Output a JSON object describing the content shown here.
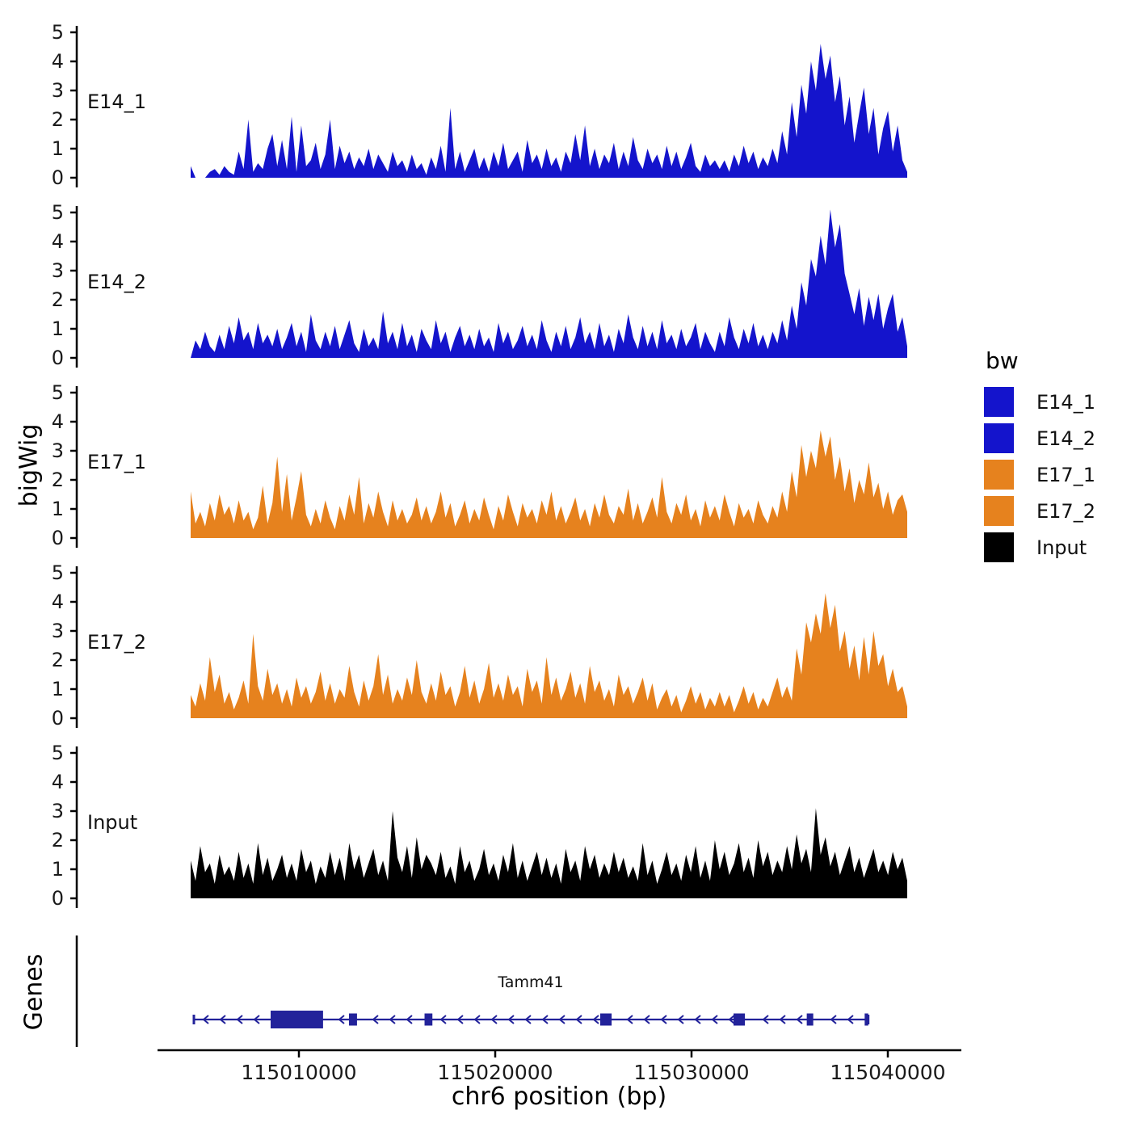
{
  "axes": {
    "y_title": "bigWig",
    "x_title": "chr6 position (bp)",
    "y_ticks": [
      "0",
      "1",
      "2",
      "3",
      "4",
      "5"
    ],
    "x_ticks": [
      {
        "label": "115010000",
        "bp": 115010000
      },
      {
        "label": "115020000",
        "bp": 115020000
      },
      {
        "label": "115030000",
        "bp": 115030000
      },
      {
        "label": "115040000",
        "bp": 115040000
      }
    ]
  },
  "legend": {
    "title": "bw",
    "entries": [
      {
        "label": "E14_1",
        "color": "#1414CC"
      },
      {
        "label": "E14_2",
        "color": "#1414CC"
      },
      {
        "label": "E17_1",
        "color": "#E6821E"
      },
      {
        "label": "E17_2",
        "color": "#E6821E"
      },
      {
        "label": "Input",
        "color": "#000000"
      }
    ]
  },
  "genes_panel": {
    "axis_title": "Genes"
  },
  "chart_data": {
    "type": "area",
    "chromosome": "chr6",
    "x_start": 115004500,
    "x_end": 115041000,
    "ylim": [
      0,
      5
    ],
    "tracks": [
      {
        "name": "E14_1",
        "color": "#1414CC",
        "values": [
          0.4,
          0,
          0,
          0,
          0.2,
          0.3,
          0.1,
          0.4,
          0.2,
          0.1,
          0.9,
          0.3,
          2,
          0.2,
          0.5,
          0.3,
          1,
          1.5,
          0.4,
          1.3,
          0.3,
          2.1,
          0.2,
          1.8,
          0.4,
          0.6,
          1.2,
          0.3,
          0.8,
          2,
          0.3,
          1.1,
          0.5,
          0.9,
          0.3,
          0.7,
          0.4,
          1,
          0.3,
          0.8,
          0.5,
          0.2,
          0.9,
          0.4,
          0.6,
          0.2,
          0.8,
          0.3,
          0.5,
          0.1,
          0.7,
          0.3,
          1.1,
          0.2,
          2.4,
          0.3,
          0.9,
          0.2,
          0.6,
          1,
          0.3,
          0.7,
          0.2,
          0.9,
          0.4,
          1.2,
          0.3,
          0.6,
          0.9,
          0.2,
          1.3,
          0.5,
          0.8,
          0.3,
          1,
          0.4,
          0.7,
          0.2,
          0.9,
          0.5,
          1.5,
          0.6,
          1.8,
          0.4,
          1,
          0.3,
          0.8,
          0.5,
          1.2,
          0.3,
          0.9,
          0.4,
          1.4,
          0.6,
          0.3,
          1,
          0.5,
          0.8,
          0.3,
          1.1,
          0.4,
          0.9,
          0.3,
          0.7,
          1.2,
          0.4,
          0.2,
          0.8,
          0.4,
          0.6,
          0.3,
          0.6,
          0.2,
          0.8,
          0.4,
          1.1,
          0.5,
          0.9,
          0.3,
          0.7,
          0.4,
          1,
          0.5,
          1.6,
          0.8,
          2.6,
          1.4,
          3.2,
          2.2,
          4,
          3,
          4.6,
          3.4,
          4.2,
          2.6,
          3.5,
          1.8,
          2.8,
          1.2,
          2.2,
          3.1,
          1.5,
          2.4,
          0.8,
          1.7,
          2.3,
          0.9,
          1.8,
          0.6,
          0.2
        ]
      },
      {
        "name": "E14_2",
        "color": "#1414CC",
        "values": [
          0,
          0.6,
          0.3,
          0.9,
          0.4,
          0.2,
          0.8,
          0.3,
          1.1,
          0.5,
          1.4,
          0.6,
          0.9,
          0.3,
          1.2,
          0.5,
          0.8,
          0.4,
          1,
          0.3,
          0.7,
          1.2,
          0.4,
          0.9,
          0.2,
          1.5,
          0.6,
          0.3,
          0.9,
          0.4,
          1.1,
          0.3,
          0.8,
          1.3,
          0.5,
          0.2,
          1,
          0.4,
          0.7,
          0.3,
          1.6,
          0.5,
          0.9,
          0.3,
          1.2,
          0.4,
          0.8,
          0.2,
          1,
          0.6,
          0.3,
          1.3,
          0.5,
          0.9,
          0.2,
          0.7,
          1.1,
          0.4,
          0.8,
          0.3,
          1,
          0.4,
          0.7,
          0.2,
          1.2,
          0.5,
          0.9,
          0.3,
          0.6,
          1.1,
          0.4,
          0.8,
          0.3,
          1.3,
          0.6,
          0.2,
          0.9,
          0.4,
          1.1,
          0.3,
          0.7,
          1.4,
          0.5,
          0.9,
          0.3,
          1.2,
          0.4,
          0.8,
          0.2,
          1,
          0.5,
          1.5,
          0.7,
          0.3,
          1.1,
          0.4,
          0.9,
          0.3,
          1.3,
          0.5,
          0.8,
          0.3,
          1,
          0.4,
          0.7,
          1.2,
          0.3,
          0.9,
          0.5,
          0.2,
          0.9,
          0.4,
          1.4,
          0.7,
          0.3,
          1,
          0.5,
          1.2,
          0.4,
          0.8,
          0.3,
          0.9,
          0.5,
          1.3,
          0.6,
          1.8,
          1,
          2.6,
          1.8,
          3.4,
          2.8,
          4.2,
          3.2,
          5.1,
          3.8,
          4.6,
          2.9,
          2.2,
          1.5,
          2.4,
          1.1,
          2.1,
          1.3,
          2.2,
          1,
          1.7,
          2.2,
          0.9,
          1.4,
          0.4
        ]
      },
      {
        "name": "E17_1",
        "color": "#E6821E",
        "values": [
          1.6,
          0.5,
          0.9,
          0.4,
          1.2,
          0.6,
          1.5,
          0.8,
          1.1,
          0.5,
          1.3,
          0.6,
          0.9,
          0.3,
          0.7,
          1.8,
          0.5,
          1.2,
          2.8,
          0.9,
          2.2,
          0.6,
          1.4,
          2.3,
          0.8,
          0.4,
          1,
          0.5,
          1.3,
          0.7,
          0.3,
          1.1,
          0.6,
          1.5,
          0.8,
          2.1,
          0.5,
          1.2,
          0.7,
          1.6,
          0.9,
          0.4,
          1.3,
          0.6,
          1,
          0.5,
          0.8,
          1.4,
          0.6,
          1.1,
          0.5,
          0.9,
          1.6,
          0.7,
          1.2,
          0.4,
          0.8,
          1.3,
          0.5,
          1,
          0.6,
          1.4,
          0.8,
          0.3,
          1.1,
          0.6,
          1.5,
          0.9,
          0.4,
          1.2,
          0.7,
          1,
          0.5,
          1.3,
          0.8,
          1.6,
          0.6,
          1.1,
          0.5,
          0.9,
          1.4,
          0.6,
          1,
          0.4,
          1.2,
          0.7,
          1.5,
          0.8,
          0.5,
          1.1,
          0.8,
          1.7,
          0.6,
          1.2,
          0.5,
          0.9,
          1.4,
          0.7,
          2.1,
          0.9,
          0.5,
          1.2,
          0.8,
          1.5,
          0.6,
          1,
          0.4,
          1.3,
          0.7,
          1.1,
          0.6,
          1.5,
          0.9,
          0.4,
          1.2,
          0.7,
          1,
          0.5,
          1.3,
          0.8,
          0.5,
          1.1,
          0.7,
          1.6,
          0.9,
          2.3,
          1.4,
          3.2,
          2.1,
          3,
          2.4,
          3.7,
          2.8,
          3.5,
          2,
          2.8,
          1.6,
          2.4,
          1.2,
          2,
          1.5,
          2.6,
          1.4,
          1.9,
          1,
          1.6,
          0.8,
          1.3,
          1.5,
          0.9
        ]
      },
      {
        "name": "E17_2",
        "color": "#E6821E",
        "values": [
          0.8,
          0.4,
          1.2,
          0.6,
          2.1,
          0.9,
          1.5,
          0.5,
          0.9,
          0.3,
          0.7,
          1.3,
          0.5,
          2.9,
          1.1,
          0.6,
          1.7,
          0.8,
          1.2,
          0.5,
          1,
          0.4,
          1.4,
          0.7,
          1.1,
          0.5,
          0.9,
          1.6,
          0.6,
          1.2,
          0.5,
          1,
          0.7,
          1.8,
          0.9,
          0.4,
          1.3,
          0.6,
          1.1,
          2.2,
          0.8,
          1.5,
          0.5,
          1,
          0.6,
          1.4,
          0.8,
          2,
          0.9,
          0.5,
          1.2,
          0.6,
          1.6,
          0.8,
          1.1,
          0.4,
          0.9,
          1.8,
          0.7,
          1.3,
          0.5,
          1,
          1.9,
          0.7,
          1.2,
          0.6,
          1.5,
          0.8,
          1.1,
          0.4,
          1.7,
          0.9,
          1.3,
          0.5,
          2.1,
          0.8,
          1.4,
          0.6,
          1,
          1.6,
          0.7,
          1.2,
          0.5,
          1.8,
          0.9,
          1.3,
          0.6,
          1,
          0.4,
          1.5,
          0.8,
          1.1,
          0.5,
          0.9,
          1.4,
          0.6,
          1.2,
          0.3,
          0.7,
          1,
          0.4,
          0.8,
          0.2,
          0.6,
          1.1,
          0.5,
          0.9,
          0.3,
          0.7,
          0.4,
          0.9,
          0.4,
          0.8,
          0.2,
          0.6,
          1.1,
          0.5,
          0.9,
          0.3,
          0.7,
          0.4,
          0.9,
          1.4,
          0.7,
          1.1,
          0.6,
          2.4,
          1.5,
          3.3,
          2.6,
          3.6,
          2.9,
          4.3,
          3.1,
          3.9,
          2.3,
          3,
          1.7,
          2.5,
          1.3,
          2.8,
          1.5,
          3,
          1.8,
          2.2,
          1.1,
          1.7,
          0.9,
          1.1,
          0.4
        ]
      },
      {
        "name": "Input",
        "color": "#000000",
        "values": [
          1.3,
          0.6,
          1.8,
          0.9,
          1.2,
          0.5,
          1.5,
          0.8,
          1.1,
          0.6,
          1.6,
          0.7,
          1.2,
          0.5,
          1.9,
          0.8,
          1.4,
          0.6,
          1,
          1.5,
          0.7,
          1.2,
          0.6,
          1.7,
          0.9,
          1.3,
          0.5,
          1.1,
          0.7,
          1.6,
          0.8,
          1.4,
          0.6,
          1.9,
          1,
          1.5,
          0.7,
          1.2,
          1.7,
          0.8,
          1.3,
          0.6,
          3,
          1.4,
          0.9,
          1.8,
          0.7,
          2.1,
          1,
          1.5,
          1.2,
          0.8,
          1.6,
          0.7,
          1.1,
          0.5,
          1.8,
          0.9,
          1.3,
          0.6,
          1,
          1.7,
          0.8,
          1.2,
          0.6,
          1.5,
          0.9,
          1.9,
          0.7,
          1.3,
          0.6,
          1.1,
          1.6,
          0.8,
          1.4,
          0.7,
          1.2,
          0.5,
          1.7,
          0.9,
          1.3,
          0.6,
          1.8,
          1,
          1.5,
          0.7,
          1.2,
          0.8,
          1.6,
          0.9,
          1.4,
          0.7,
          1.1,
          0.6,
          1.9,
          0.8,
          1.3,
          0.5,
          1,
          1.6,
          0.8,
          1.2,
          0.6,
          1.5,
          0.9,
          1.8,
          0.7,
          1.3,
          0.6,
          2,
          1,
          1.6,
          0.8,
          1.2,
          1.9,
          0.9,
          1.4,
          0.7,
          2,
          1.1,
          1.6,
          0.8,
          1.3,
          0.9,
          1.8,
          1,
          2.2,
          1.2,
          1.7,
          0.9,
          3.1,
          1.5,
          2.1,
          1.1,
          1.6,
          0.8,
          1.3,
          1.8,
          0.9,
          1.4,
          0.7,
          1.2,
          1.7,
          0.9,
          1.3,
          0.8,
          1.6,
          1,
          1.4,
          0.6
        ]
      }
    ],
    "gene_track": {
      "name": "Tamm41",
      "strand": "-",
      "color": "#22229A",
      "start": 115004650,
      "end": 115039000,
      "exons": [
        [
          115008560,
          115011230
        ],
        [
          115012550,
          115012960
        ],
        [
          115016400,
          115016800
        ],
        [
          115025350,
          115025930
        ],
        [
          115032140,
          115032720
        ],
        [
          115035870,
          115036200
        ],
        [
          115038820,
          115039000
        ]
      ]
    }
  }
}
